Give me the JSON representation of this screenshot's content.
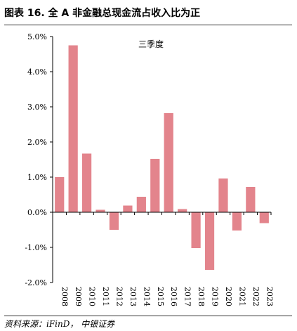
{
  "header": {
    "title": "图表 16. 全 A 非金融总现金流占收入比为正"
  },
  "footer": {
    "source": "资料来源：iFinD， 中银证券"
  },
  "chart_data": {
    "type": "bar",
    "title": "",
    "annotation": "三季度",
    "categories": [
      "2008",
      "2009",
      "2010",
      "2011",
      "2012",
      "2013",
      "2014",
      "2015",
      "2016",
      "2017",
      "2018",
      "2019",
      "2020",
      "2021",
      "2022",
      "2023"
    ],
    "values": [
      1.0,
      4.75,
      1.67,
      0.07,
      -0.5,
      0.19,
      0.44,
      1.52,
      2.82,
      0.09,
      -1.02,
      -1.64,
      0.96,
      -0.52,
      0.72,
      -0.31
    ],
    "ylim": [
      -2.0,
      5.0
    ],
    "yticks": [
      -2.0,
      -1.0,
      0.0,
      1.0,
      2.0,
      3.0,
      4.0,
      5.0
    ],
    "ytick_labels": [
      "-2.0%",
      "-1.0%",
      "0.0%",
      "1.0%",
      "2.0%",
      "3.0%",
      "4.0%",
      "5.0%"
    ],
    "xlabel": "",
    "ylabel": "",
    "grid": false,
    "bar_color": "#e3848c"
  }
}
